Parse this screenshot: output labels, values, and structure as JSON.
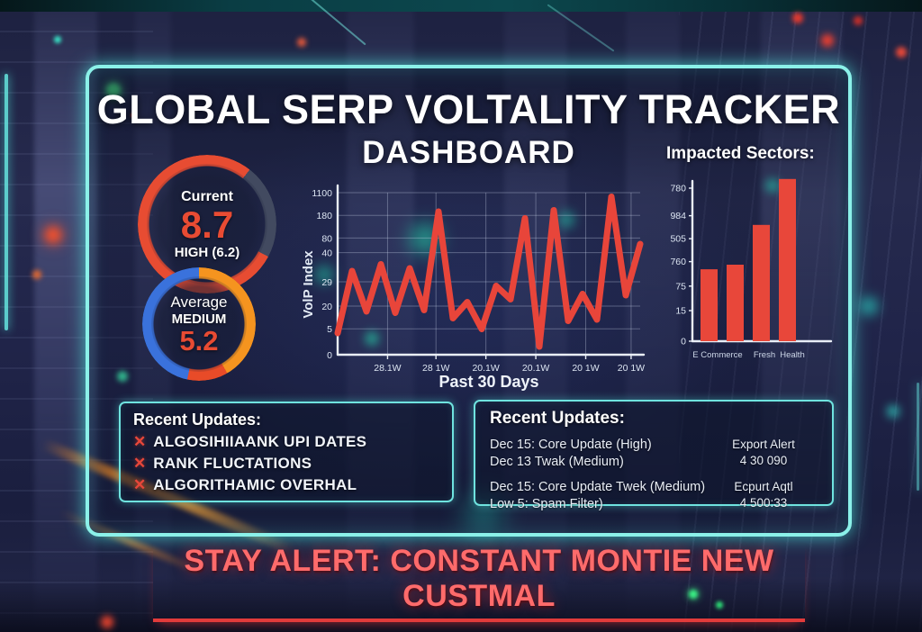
{
  "header": {
    "title": "GLOBAL SERP VOLTALITY TRACKER",
    "subtitle": "DASHBOARD"
  },
  "gauges": {
    "current": {
      "label": "Current",
      "value": "8.7",
      "status": "HIGH (6.2)"
    },
    "average": {
      "label": "Average",
      "status": "MEDIUM",
      "value": "5.2"
    }
  },
  "chart_data": [
    {
      "type": "line",
      "title": "",
      "xlabel": "Past 30 Days",
      "ylabel": "VolP Index",
      "grid": true,
      "ymax": 120,
      "line_color": "#e8453a",
      "y_ticks": [
        {
          "label": "1100",
          "f": 0.0
        },
        {
          "label": "180",
          "f": 0.14
        },
        {
          "label": "80",
          "f": 0.28
        },
        {
          "label": "40",
          "f": 0.37
        },
        {
          "label": "29",
          "f": 0.55
        },
        {
          "label": "20",
          "f": 0.7
        },
        {
          "label": "5",
          "f": 0.84
        },
        {
          "label": "0",
          "f": 1.0
        }
      ],
      "x_ticks": [
        {
          "label": "28.1W",
          "f": 0.165
        },
        {
          "label": "28 1W",
          "f": 0.325
        },
        {
          "label": "20.1W",
          "f": 0.49
        },
        {
          "label": "20.1W",
          "f": 0.655
        },
        {
          "label": "20 1W",
          "f": 0.82
        },
        {
          "label": "20 1W",
          "f": 0.97
        }
      ],
      "values": [
        16,
        62,
        32,
        67,
        31,
        64,
        33,
        106,
        27,
        39,
        19,
        51,
        41,
        101,
        6,
        107,
        25,
        45,
        26,
        117,
        44,
        82
      ]
    },
    {
      "type": "bar",
      "title": "Impacted Sectors:",
      "categories": [
        "E Commerce",
        "Fresh",
        "Health"
      ],
      "values": [
        47,
        50,
        76,
        106
      ],
      "note": "values are bar heights as percent of the 0 to 780 tick span; 4 bars, 3 visible labels",
      "bar_color": "#e8473a",
      "y_ticks": [
        {
          "label": "780",
          "f": 0.0
        },
        {
          "label": "984",
          "f": 0.18
        },
        {
          "label": "505",
          "f": 0.33
        },
        {
          "label": "760",
          "f": 0.48
        },
        {
          "label": "75",
          "f": 0.64
        },
        {
          "label": "15",
          "f": 0.8
        },
        {
          "label": "0",
          "f": 1.0
        }
      ]
    }
  ],
  "updates_left": {
    "heading": "Recent Updates:",
    "bullet": "✕",
    "items": [
      "ALGOSIHIIAANK UPI DATES",
      "RANK FLUCTATIONS",
      "ALGORITHAMIC OVERHAL"
    ]
  },
  "updates_right": {
    "heading": "Recent Updates:",
    "groups": [
      {
        "lines": [
          "Dec 15: Core Update (High)",
          "Dec 13 Twak (Medium)"
        ],
        "alert_title": "Export Alert",
        "alert_value": "4 30 090"
      },
      {
        "lines": [
          "Dec 15: Core Update Twek (Medium)",
          "Low 5: Spam Filter)"
        ],
        "alert_title": "Ecpurt Aqtl",
        "alert_value": "4 500:33"
      }
    ]
  },
  "banner": {
    "text": "STAY ALERT: CONSTANT MONTIE NEW CUSTMAL"
  },
  "colors": {
    "frame": "#8bf1e9",
    "accent_red": "#e8473a",
    "gauge_current_ring": "#e74c32",
    "gauge_gap": "#424a60",
    "gauge_avg_blue": "#3a72dc",
    "gauge_avg_orange": "#f5941f",
    "banner_text": "#ff6b6b",
    "banner_underline": "#e23b3b"
  }
}
